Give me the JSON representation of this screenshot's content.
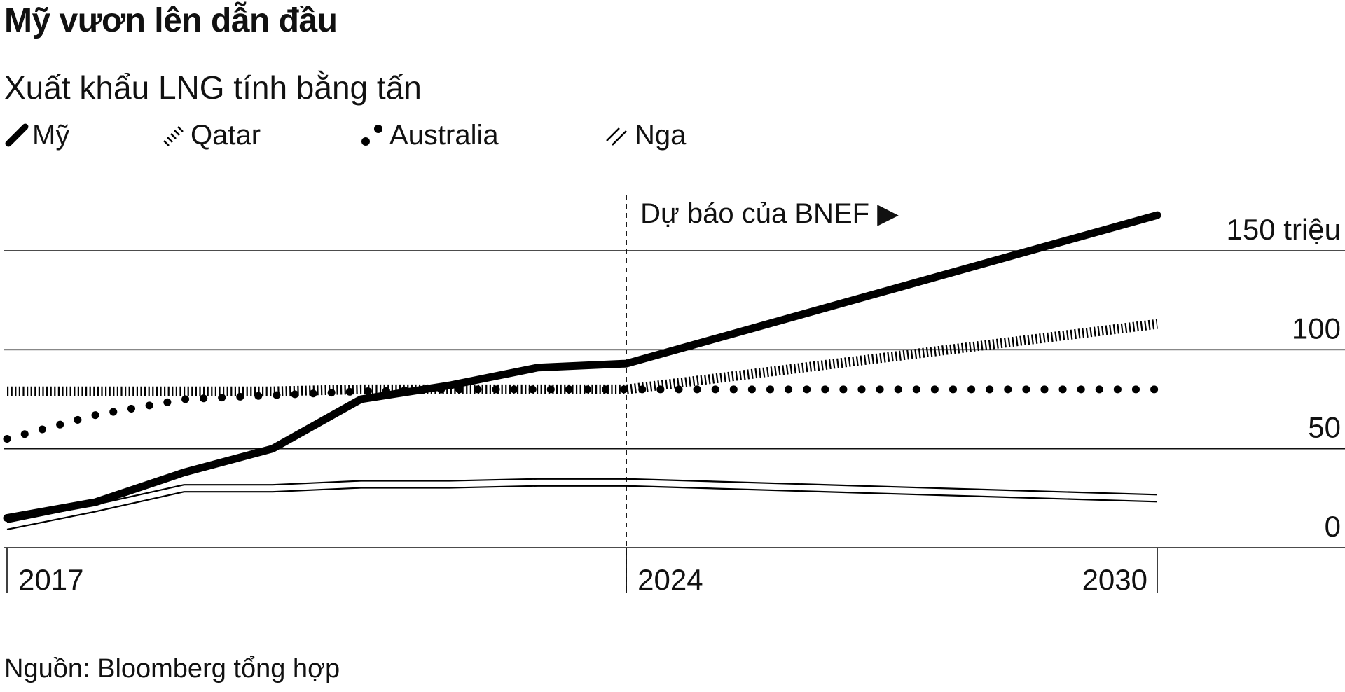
{
  "title": "Mỹ vươn lên dẫn đầu",
  "subtitle": "Xuất khẩu LNG tính bằng tấn",
  "source": "Nguồn: Bloomberg tổng hợp",
  "legend": [
    {
      "label": "Mỹ",
      "icon": "solid-stroke-icon"
    },
    {
      "label": "Qatar",
      "icon": "hatched-stroke-icon"
    },
    {
      "label": "Australia",
      "icon": "dots-icon"
    },
    {
      "label": "Nga",
      "icon": "double-line-icon"
    }
  ],
  "chart_data": {
    "type": "line",
    "title": "Mỹ vươn lên dẫn đầu",
    "subtitle": "Xuất khẩu LNG tính bằng tấn",
    "x": [
      2017,
      2018,
      2019,
      2020,
      2021,
      2022,
      2023,
      2024,
      2030
    ],
    "x_ticks": [
      "2017",
      "2024",
      "2030"
    ],
    "ylim": [
      0,
      150
    ],
    "y_ticks": [
      {
        "value": 0,
        "label": "0"
      },
      {
        "value": 50,
        "label": "50"
      },
      {
        "value": 100,
        "label": "100"
      },
      {
        "value": 150,
        "label": "150 triệu"
      }
    ],
    "forecast_start": 2024,
    "forecast_label": "Dự báo của BNEF",
    "forecast_arrow": "▶",
    "grid": true,
    "legend_position": "top-left",
    "series": [
      {
        "name": "Mỹ",
        "style": "solid-thick",
        "color": "#000000",
        "values": [
          15,
          23,
          38,
          50,
          75,
          82,
          91,
          93,
          168
        ]
      },
      {
        "name": "Qatar",
        "style": "hatched",
        "color": "#000000",
        "values": [
          79,
          79,
          79,
          79,
          80,
          80,
          80,
          80,
          113
        ]
      },
      {
        "name": "Australia",
        "style": "dotted",
        "color": "#000000",
        "values": [
          55,
          67,
          75,
          77,
          79,
          80,
          80,
          80,
          80
        ]
      },
      {
        "name": "Nga",
        "style": "double-thin",
        "color": "#000000",
        "values": [
          11,
          20,
          30,
          30,
          32,
          32,
          33,
          33,
          25
        ]
      }
    ]
  }
}
